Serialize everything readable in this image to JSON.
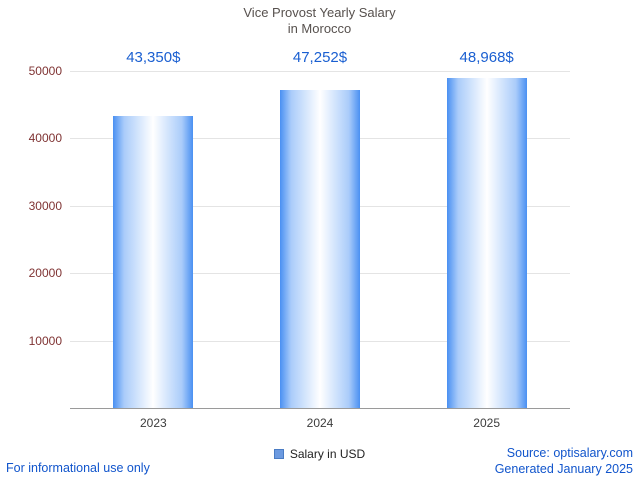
{
  "title": {
    "line1": "Vice Provost Yearly Salary",
    "line2": "in Morocco"
  },
  "chart_data": {
    "type": "bar",
    "title": "Vice Provost Yearly Salary in Morocco",
    "categories": [
      "2023",
      "2024",
      "2025"
    ],
    "series": [
      {
        "name": "Salary in USD",
        "values": [
          43350,
          47252,
          48968
        ]
      }
    ],
    "value_labels": [
      "43,350$",
      "47,252$",
      "48,968$"
    ],
    "xlabel": "",
    "ylabel": "",
    "ylim": [
      0,
      50000
    ],
    "yticks": [
      10000,
      20000,
      30000,
      40000,
      50000
    ],
    "grid": true,
    "legend_position": "bottom"
  },
  "legend": {
    "label": "Salary in USD"
  },
  "footer": {
    "left": "For informational use only",
    "source": "Source: optisalary.com",
    "generated": "Generated January 2025"
  },
  "colors": {
    "title": "#57514e",
    "value_label": "#1a5fd1",
    "y_tick": "#7f3333",
    "x_tick": "#3c3c3c",
    "gridline": "#e4e4e4",
    "axis_line": "#9a9a9a",
    "bar_edge": "#4a90f2",
    "bar_center": "#ffffff",
    "legend_swatch": "#6c9ae0",
    "link": "#1155cc"
  }
}
